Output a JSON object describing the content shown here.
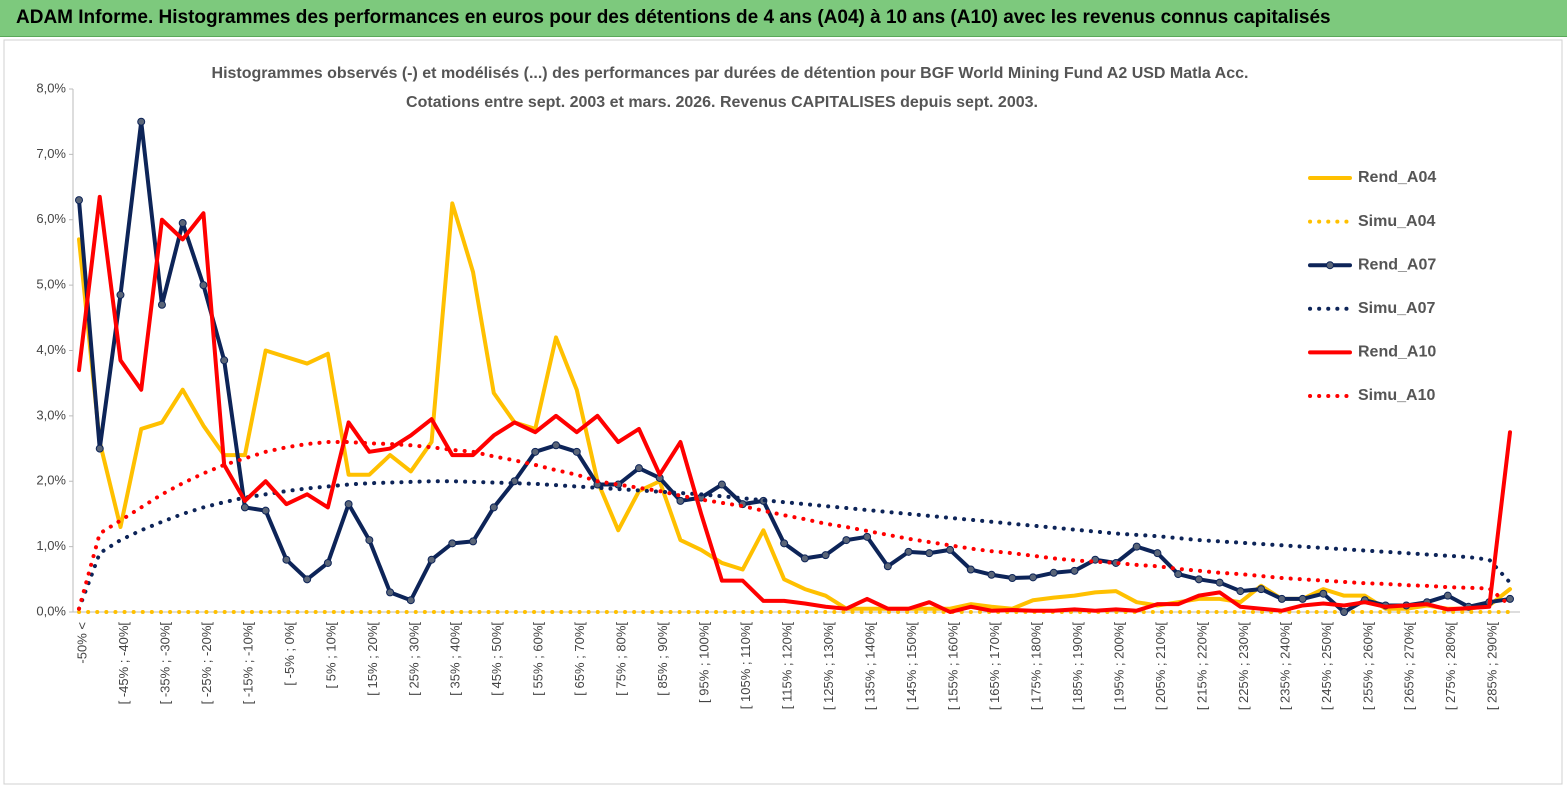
{
  "header": {
    "title": "ADAM Informe. Histogrammes des performances en euros pour des détentions de 4 ans (A04) à 10 ans (A10) avec les revenus connus capitalisés"
  },
  "chart_data": {
    "type": "line",
    "title": "Histogrammes observés (-) et modélisés (...) des performances par durées de détention pour BGF World Mining Fund A2 USD Matla Acc.",
    "subtitle": "Cotations entre sept. 2003 et mars. 2026. Revenus CAPITALISES depuis sept. 2003.",
    "categories": [
      "-50% <",
      null,
      "[ -45% ; -40%[",
      null,
      "[ -35% ; -30%[",
      null,
      "[ -25% ; -20%[",
      null,
      "[ -15% ; -10%[",
      null,
      "[ -5% ; 0%[",
      null,
      "[ 5% ; 10%[",
      null,
      "[ 15% ; 20%[",
      null,
      "[ 25% ; 30%[",
      null,
      "[ 35% ; 40%[",
      null,
      "[ 45% ; 50%[",
      null,
      "[ 55% ; 60%[",
      null,
      "[ 65% ; 70%[",
      null,
      "[ 75% ; 80%[",
      null,
      "[ 85% ; 90%[",
      null,
      "[ 95% ; 100%[",
      null,
      "[ 105% ; 110%[",
      null,
      "[ 115% ; 120%[",
      null,
      "[ 125% ; 130%[",
      null,
      "[ 135% ; 140%[",
      null,
      "[ 145% ; 150%[",
      null,
      "[ 155% ; 160%[",
      null,
      "[ 165% ; 170%[",
      null,
      "[ 175% ; 180%[",
      null,
      "[ 185% ; 190%[",
      null,
      "[ 195% ; 200%[",
      null,
      "[ 205% ; 210%[",
      null,
      "[ 215% ; 220%[",
      null,
      "[ 225% ; 230%[",
      null,
      "[ 235% ; 240%[",
      null,
      "[ 245% ; 250%[",
      null,
      "[ 255% ; 260%[",
      null,
      "[ 265% ; 270%[",
      null,
      "[ 275% ; 280%[",
      null,
      "[ 285% ; 290%[",
      null
    ],
    "series": [
      {
        "name": "Rend_A04",
        "color": "#ffc000",
        "dash": false,
        "marker": false,
        "values": [
          5.7,
          2.6,
          1.3,
          2.8,
          2.9,
          3.4,
          2.85,
          2.4,
          2.4,
          4.0,
          3.9,
          3.8,
          3.95,
          2.1,
          2.1,
          2.4,
          2.15,
          2.6,
          6.25,
          5.2,
          3.35,
          2.9,
          2.8,
          4.2,
          3.4,
          2.0,
          1.25,
          1.85,
          2.0,
          1.1,
          0.95,
          0.75,
          0.65,
          1.25,
          0.5,
          0.35,
          0.25,
          0.05,
          0.05,
          0.05,
          0.05,
          0.05,
          0.05,
          0.12,
          0.08,
          0.05,
          0.18,
          0.22,
          0.25,
          0.3,
          0.32,
          0.15,
          0.1,
          0.15,
          0.2,
          0.2,
          0.15,
          0.4,
          0.2,
          0.2,
          0.35,
          0.25,
          0.25,
          0.05,
          0.05,
          0.1,
          0.05,
          0.05,
          0.1,
          0.35
        ]
      },
      {
        "name": "Simu_A04",
        "color": "#ffc000",
        "dash": true,
        "marker": false,
        "values": [
          0,
          0,
          0,
          0,
          0,
          0,
          0,
          0,
          0,
          0,
          0,
          0,
          0,
          0,
          0,
          0,
          0,
          0,
          0,
          0,
          0,
          0,
          0,
          0,
          0,
          0,
          0,
          0,
          0,
          0,
          0,
          0,
          0,
          0,
          0,
          0,
          0,
          0,
          0,
          0,
          0,
          0,
          0,
          0,
          0,
          0,
          0,
          0,
          0,
          0,
          0,
          0,
          0,
          0,
          0,
          0,
          0,
          0,
          0,
          0,
          0,
          0,
          0,
          0,
          0,
          0,
          0,
          0,
          0,
          0
        ]
      },
      {
        "name": "Rend_A07",
        "color": "#0d2458",
        "dash": false,
        "marker": true,
        "values": [
          6.3,
          2.5,
          4.85,
          7.5,
          4.7,
          5.95,
          5.0,
          3.85,
          1.6,
          1.55,
          0.8,
          0.5,
          0.75,
          1.65,
          1.1,
          0.3,
          0.18,
          0.8,
          1.05,
          1.08,
          1.6,
          2.0,
          2.45,
          2.55,
          2.45,
          1.95,
          1.95,
          2.2,
          2.05,
          1.7,
          1.75,
          1.95,
          1.65,
          1.7,
          1.05,
          0.82,
          0.87,
          1.1,
          1.15,
          0.7,
          0.92,
          0.9,
          0.95,
          0.65,
          0.57,
          0.52,
          0.53,
          0.6,
          0.63,
          0.8,
          0.75,
          1.0,
          0.9,
          0.58,
          0.5,
          0.45,
          0.32,
          0.35,
          0.2,
          0.2,
          0.28,
          0.0,
          0.18,
          0.1,
          0.1,
          0.15,
          0.25,
          0.08,
          0.15,
          0.2
        ]
      },
      {
        "name": "Simu_A07",
        "color": "#0d2458",
        "dash": true,
        "marker": false,
        "values": [
          0.05,
          0.9,
          1.1,
          1.25,
          1.38,
          1.5,
          1.6,
          1.68,
          1.75,
          1.8,
          1.85,
          1.89,
          1.92,
          1.95,
          1.97,
          1.98,
          1.99,
          2.0,
          2.0,
          1.99,
          1.98,
          1.97,
          1.96,
          1.94,
          1.92,
          1.9,
          1.88,
          1.86,
          1.84,
          1.82,
          1.8,
          1.77,
          1.74,
          1.71,
          1.68,
          1.65,
          1.62,
          1.59,
          1.56,
          1.53,
          1.5,
          1.47,
          1.44,
          1.41,
          1.38,
          1.35,
          1.32,
          1.29,
          1.26,
          1.23,
          1.2,
          1.18,
          1.16,
          1.13,
          1.1,
          1.08,
          1.06,
          1.04,
          1.02,
          1.0,
          0.98,
          0.96,
          0.94,
          0.92,
          0.9,
          0.88,
          0.86,
          0.84,
          0.8,
          0.45
        ]
      },
      {
        "name": "Rend_A10",
        "color": "#ff0000",
        "dash": false,
        "marker": false,
        "values": [
          3.7,
          6.35,
          3.85,
          3.4,
          6.0,
          5.7,
          6.1,
          2.25,
          1.7,
          2.0,
          1.65,
          1.8,
          1.6,
          2.9,
          2.45,
          2.5,
          2.7,
          2.95,
          2.4,
          2.4,
          2.7,
          2.9,
          2.75,
          3.0,
          2.75,
          3.0,
          2.6,
          2.8,
          2.1,
          2.6,
          1.5,
          0.48,
          0.48,
          0.17,
          0.17,
          0.13,
          0.08,
          0.05,
          0.2,
          0.05,
          0.05,
          0.15,
          0.0,
          0.08,
          0.02,
          0.03,
          0.02,
          0.02,
          0.04,
          0.02,
          0.04,
          0.02,
          0.12,
          0.12,
          0.25,
          0.3,
          0.08,
          0.05,
          0.02,
          0.1,
          0.13,
          0.1,
          0.15,
          0.08,
          0.1,
          0.12,
          0.04,
          0.06,
          0.08,
          2.75
        ]
      },
      {
        "name": "Simu_A10",
        "color": "#ff0000",
        "dash": true,
        "marker": false,
        "values": [
          0.05,
          1.2,
          1.4,
          1.6,
          1.8,
          1.97,
          2.12,
          2.25,
          2.35,
          2.45,
          2.52,
          2.57,
          2.6,
          2.6,
          2.58,
          2.57,
          2.55,
          2.52,
          2.48,
          2.45,
          2.38,
          2.32,
          2.25,
          2.17,
          2.1,
          2.0,
          1.95,
          1.9,
          1.85,
          1.78,
          1.72,
          1.67,
          1.62,
          1.55,
          1.48,
          1.42,
          1.35,
          1.3,
          1.24,
          1.18,
          1.12,
          1.07,
          1.02,
          0.97,
          0.93,
          0.9,
          0.86,
          0.82,
          0.79,
          0.77,
          0.75,
          0.72,
          0.7,
          0.66,
          0.63,
          0.6,
          0.58,
          0.55,
          0.52,
          0.5,
          0.48,
          0.46,
          0.44,
          0.43,
          0.41,
          0.4,
          0.38,
          0.37,
          0.36,
          0.1
        ]
      }
    ],
    "ylim": [
      0,
      8
    ],
    "yticks": [
      {
        "value": 0,
        "label": "0,0%"
      },
      {
        "value": 1,
        "label": "1,0%"
      },
      {
        "value": 2,
        "label": "2,0%"
      },
      {
        "value": 3,
        "label": "3,0%"
      },
      {
        "value": 4,
        "label": "4,0%"
      },
      {
        "value": 5,
        "label": "5,0%"
      },
      {
        "value": 6,
        "label": "6,0%"
      },
      {
        "value": 7,
        "label": "7,0%"
      },
      {
        "value": 8,
        "label": "8,0%"
      }
    ],
    "legend": "right"
  }
}
